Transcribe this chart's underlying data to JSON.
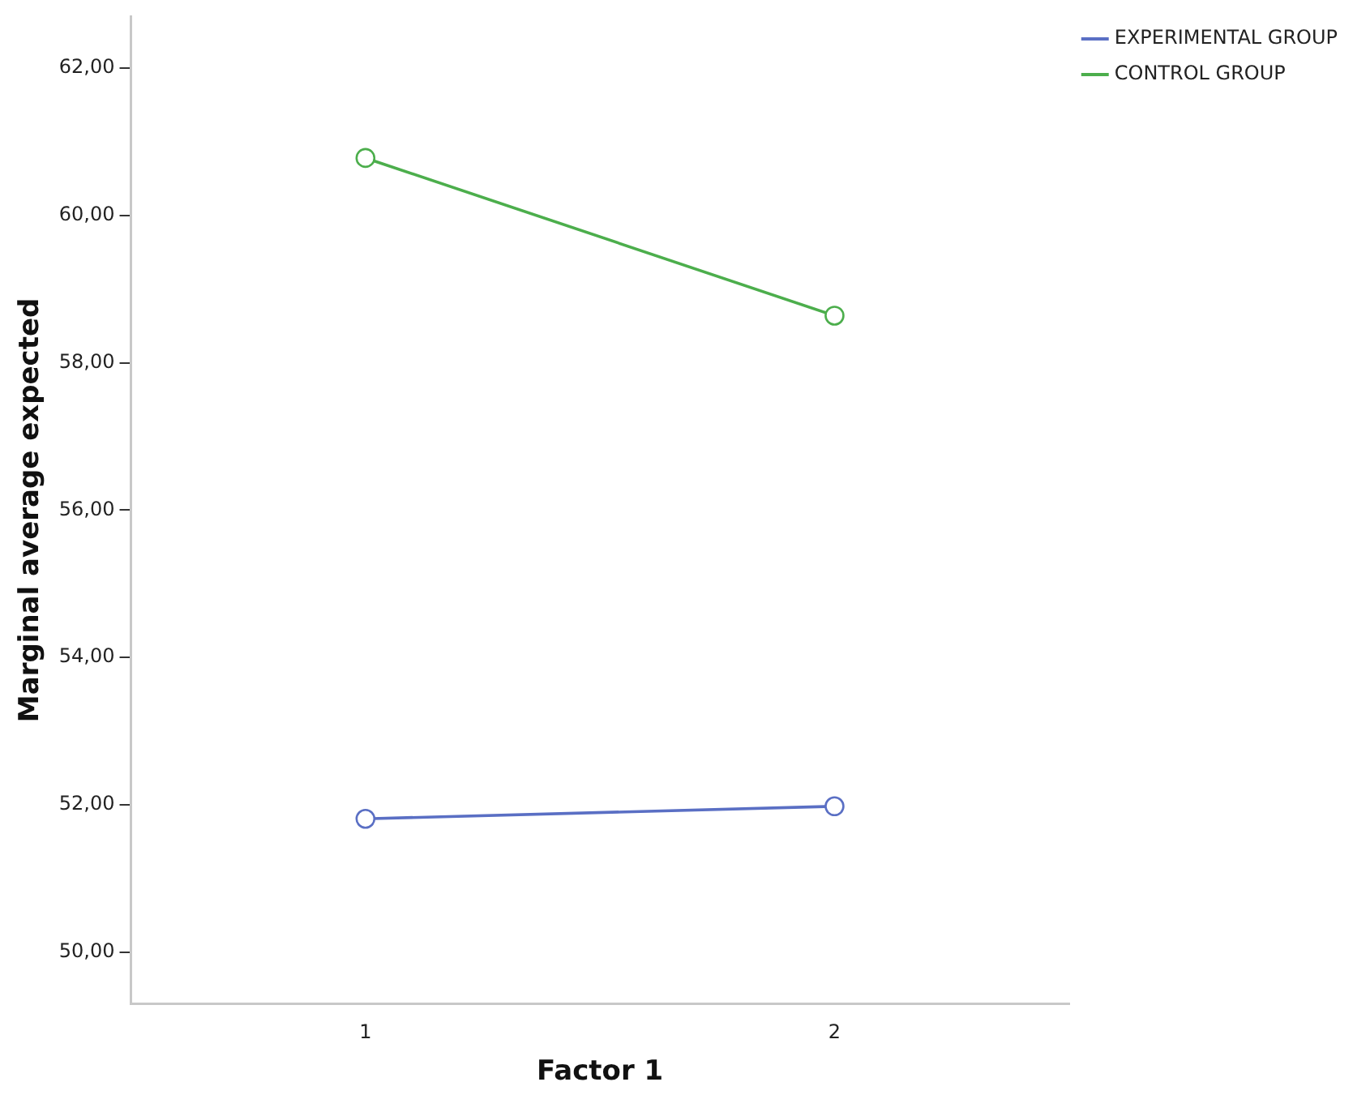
{
  "chart_data": {
    "type": "line",
    "xlabel": "Factor 1",
    "ylabel": "Marginal average expected",
    "categories": [
      "1",
      "2"
    ],
    "series": [
      {
        "name": "EXPERIMENTAL GROUP",
        "color": "#5a6fc4",
        "values": [
          51.81,
          51.98
        ]
      },
      {
        "name": "CONTROL GROUP",
        "color": "#4cae4c",
        "values": [
          60.78,
          58.64
        ]
      }
    ],
    "ylim": [
      49.3,
      62.7
    ],
    "yticks": [
      {
        "value": 50,
        "label": "50,00"
      },
      {
        "value": 52,
        "label": "52,00"
      },
      {
        "value": 54,
        "label": "54,00"
      },
      {
        "value": 56,
        "label": "56,00"
      },
      {
        "value": 58,
        "label": "58,00"
      },
      {
        "value": 60,
        "label": "60,00"
      },
      {
        "value": 62,
        "label": "62,00"
      }
    ],
    "grid": false,
    "legend": "top right",
    "marker": "circle",
    "line_style": "solid"
  }
}
